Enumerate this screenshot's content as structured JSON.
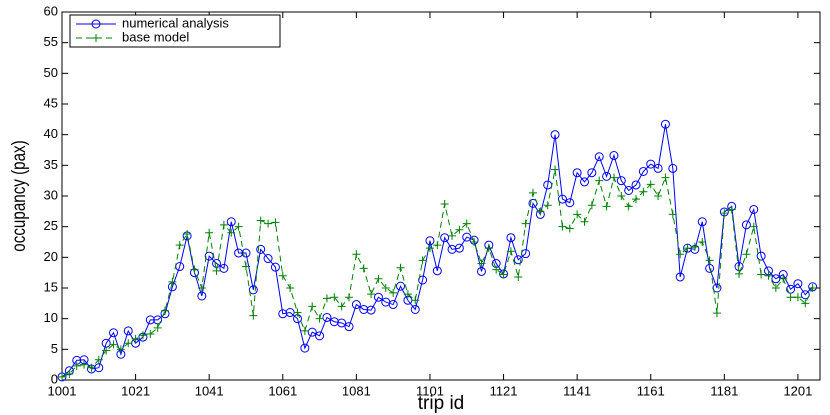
{
  "chart_data": {
    "type": "line",
    "xlabel": "trip id",
    "ylabel": "occupancy (pax)",
    "x": [
      1001,
      1003,
      1005,
      1007,
      1009,
      1011,
      1013,
      1015,
      1017,
      1019,
      1021,
      1023,
      1025,
      1027,
      1029,
      1031,
      1033,
      1035,
      1037,
      1039,
      1041,
      1043,
      1045,
      1047,
      1049,
      1051,
      1053,
      1055,
      1057,
      1059,
      1061,
      1063,
      1065,
      1067,
      1069,
      1071,
      1073,
      1075,
      1077,
      1079,
      1081,
      1083,
      1085,
      1087,
      1089,
      1091,
      1093,
      1095,
      1097,
      1099,
      1101,
      1103,
      1105,
      1107,
      1109,
      1111,
      1113,
      1115,
      1117,
      1119,
      1121,
      1123,
      1125,
      1127,
      1129,
      1131,
      1133,
      1135,
      1137,
      1139,
      1141,
      1143,
      1145,
      1147,
      1149,
      1151,
      1153,
      1155,
      1157,
      1159,
      1161,
      1163,
      1165,
      1167,
      1169,
      1171,
      1173,
      1175,
      1177,
      1179,
      1181,
      1183,
      1185,
      1187,
      1189,
      1191,
      1193,
      1195,
      1197,
      1199,
      1201,
      1203,
      1205
    ],
    "series": [
      {
        "name": "numerical analysis",
        "color": "#0000ff",
        "marker": "circle",
        "dash": "solid",
        "values": [
          0.5,
          1.5,
          3.2,
          3.3,
          1.8,
          2.0,
          6.0,
          7.7,
          4.2,
          8.0,
          6.0,
          7.0,
          9.8,
          9.8,
          10.8,
          15.2,
          18.5,
          23.5,
          17.5,
          13.7,
          20.2,
          19.0,
          18.2,
          25.8,
          20.7,
          20.7,
          14.7,
          21.3,
          19.8,
          18.4,
          10.8,
          11.0,
          10.0,
          5.2,
          7.8,
          7.2,
          10.2,
          9.5,
          9.3,
          8.7,
          12.3,
          11.5,
          11.4,
          13.5,
          12.7,
          12.3,
          15.3,
          13.0,
          11.5,
          16.3,
          22.7,
          17.8,
          23.2,
          21.3,
          21.5,
          23.3,
          22.8,
          17.7,
          22.0,
          19.0,
          17.3,
          23.2,
          19.6,
          20.6,
          28.8,
          27.0,
          31.8,
          40.0,
          29.5,
          28.9,
          33.8,
          32.3,
          33.8,
          36.4,
          33.2,
          36.6,
          32.5,
          30.9,
          31.8,
          34.0,
          35.2,
          34.5,
          41.7,
          34.5,
          16.8,
          21.5,
          21.3,
          25.8,
          18.2,
          15.0,
          27.4,
          28.3,
          18.5,
          25.3,
          27.8,
          20.2,
          17.8,
          16.5,
          17.2,
          14.8,
          15.7,
          13.9,
          15.2
        ]
      },
      {
        "name": "base model",
        "color": "#008000",
        "marker": "plus",
        "dash": "dashed",
        "values": [
          0.5,
          1.0,
          2.3,
          2.5,
          2.0,
          3.3,
          4.8,
          5.8,
          5.0,
          6.0,
          6.7,
          7.3,
          7.5,
          8.5,
          11.3,
          16.0,
          22.0,
          23.8,
          18.0,
          15.0,
          24.0,
          17.8,
          25.3,
          24.0,
          25.0,
          18.5,
          10.5,
          26.0,
          25.5,
          25.7,
          17.0,
          15.0,
          11.0,
          8.0,
          12.0,
          10.0,
          13.3,
          13.5,
          12.0,
          13.5,
          20.5,
          18.2,
          14.0,
          16.5,
          15.0,
          14.2,
          18.3,
          14.0,
          13.0,
          19.5,
          21.5,
          22.0,
          28.7,
          23.5,
          24.5,
          25.5,
          22.5,
          19.0,
          21.5,
          18.0,
          17.2,
          21.0,
          16.8,
          25.5,
          30.5,
          27.5,
          28.5,
          34.3,
          25.0,
          24.7,
          27.0,
          25.8,
          28.5,
          32.5,
          28.3,
          33.0,
          30.0,
          28.3,
          29.5,
          30.7,
          31.9,
          30.0,
          33.0,
          27.0,
          20.5,
          21.5,
          21.7,
          22.5,
          19.5,
          10.9,
          27.2,
          27.8,
          17.3,
          20.5,
          25.0,
          17.2,
          17.0,
          15.0,
          16.5,
          13.5,
          13.5,
          12.5,
          15.0
        ]
      }
    ],
    "xlim": [
      1001,
      1207
    ],
    "xticks": [
      1001,
      1021,
      1041,
      1061,
      1081,
      1101,
      1121,
      1141,
      1161,
      1181,
      1201
    ],
    "ylim": [
      0,
      60
    ],
    "yticks": [
      0,
      5,
      10,
      15,
      20,
      25,
      30,
      35,
      40,
      45,
      50,
      55,
      60
    ],
    "grid": false,
    "legend": "northwest"
  }
}
